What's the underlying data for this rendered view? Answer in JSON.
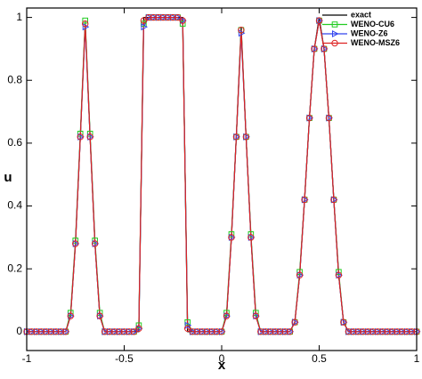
{
  "chart_data": {
    "type": "line",
    "x_label": "x",
    "y_label": "u",
    "x": [
      -1,
      -0.975,
      -0.95,
      -0.925,
      -0.9,
      -0.875,
      -0.85,
      -0.825,
      -0.8,
      -0.775,
      -0.75,
      -0.725,
      -0.7,
      -0.675,
      -0.65,
      -0.625,
      -0.6,
      -0.575,
      -0.55,
      -0.525,
      -0.5,
      -0.475,
      -0.45,
      -0.425,
      -0.4,
      -0.375,
      -0.35,
      -0.325,
      -0.3,
      -0.275,
      -0.25,
      -0.225,
      -0.2,
      -0.175,
      -0.15,
      -0.125,
      -0.1,
      -0.075,
      -0.05,
      -0.025,
      0,
      0.025,
      0.05,
      0.075,
      0.1,
      0.125,
      0.15,
      0.175,
      0.2,
      0.225,
      0.25,
      0.275,
      0.3,
      0.325,
      0.35,
      0.375,
      0.4,
      0.425,
      0.45,
      0.475,
      0.5,
      0.525,
      0.55,
      0.575,
      0.6,
      0.625,
      0.65,
      0.675,
      0.7,
      0.725,
      0.75,
      0.775,
      0.8,
      0.825,
      0.85,
      0.875,
      0.9,
      0.925,
      0.95,
      0.975,
      1
    ],
    "series": [
      {
        "name": "exact",
        "color": "#000000",
        "marker": "none",
        "values": [
          0,
          0,
          0,
          0,
          0,
          0,
          0,
          0,
          0,
          0.05,
          0.28,
          0.62,
          0.98,
          0.62,
          0.28,
          0.05,
          0,
          0,
          0,
          0,
          0,
          0,
          0,
          0,
          1,
          1,
          1,
          1,
          1,
          1,
          1,
          1,
          1,
          0,
          0,
          0,
          0,
          0,
          0,
          0,
          0,
          0.05,
          0.3,
          0.62,
          0.97,
          0.62,
          0.3,
          0.05,
          0,
          0,
          0,
          0,
          0,
          0,
          0,
          0.03,
          0.18,
          0.42,
          0.68,
          0.9,
          1,
          0.9,
          0.68,
          0.42,
          0.18,
          0.03,
          0,
          0,
          0,
          0,
          0,
          0,
          0,
          0,
          0,
          0,
          0,
          0,
          0,
          0,
          0
        ]
      },
      {
        "name": "WENO-CU6",
        "color": "#22cc22",
        "marker": "square",
        "values": [
          0,
          0,
          0,
          0,
          0,
          0,
          0,
          0,
          0,
          0.06,
          0.29,
          0.63,
          0.99,
          0.63,
          0.29,
          0.06,
          0,
          0,
          0,
          0,
          0,
          0,
          0,
          0.02,
          0.98,
          1,
          1,
          1,
          1,
          1,
          1,
          1,
          0.98,
          0.03,
          0,
          0,
          0,
          0,
          0,
          0,
          0,
          0.06,
          0.31,
          0.62,
          0.96,
          0.62,
          0.31,
          0.06,
          0,
          0,
          0,
          0,
          0,
          0,
          0,
          0.03,
          0.19,
          0.42,
          0.68,
          0.9,
          0.99,
          0.9,
          0.68,
          0.42,
          0.19,
          0.03,
          0,
          0,
          0,
          0,
          0,
          0,
          0,
          0,
          0,
          0,
          0,
          0,
          0,
          0,
          0
        ]
      },
      {
        "name": "WENO-Z6",
        "color": "#3344ee",
        "marker": "triangle",
        "values": [
          0,
          0,
          0,
          0,
          0,
          0,
          0,
          0,
          0,
          0.05,
          0.28,
          0.62,
          0.97,
          0.62,
          0.28,
          0.05,
          0,
          0,
          0,
          0,
          0,
          0,
          0,
          0.01,
          0.97,
          1,
          1,
          1,
          1,
          1,
          1,
          1,
          0.99,
          0.02,
          0,
          0,
          0,
          0,
          0,
          0,
          0,
          0.05,
          0.3,
          0.62,
          0.95,
          0.62,
          0.3,
          0.05,
          0,
          0,
          0,
          0,
          0,
          0,
          0,
          0.03,
          0.18,
          0.42,
          0.68,
          0.9,
          0.99,
          0.9,
          0.68,
          0.42,
          0.18,
          0.03,
          0,
          0,
          0,
          0,
          0,
          0,
          0,
          0,
          0,
          0,
          0,
          0,
          0,
          0,
          0
        ]
      },
      {
        "name": "WENO-MSZ6",
        "color": "#dd2222",
        "marker": "circle",
        "values": [
          0,
          0,
          0,
          0,
          0,
          0,
          0,
          0,
          0,
          0.05,
          0.28,
          0.62,
          0.98,
          0.62,
          0.28,
          0.05,
          0,
          0,
          0,
          0,
          0,
          0,
          0,
          0.01,
          0.99,
          1,
          1,
          1,
          1,
          1,
          1,
          1,
          0.99,
          0.01,
          0,
          0,
          0,
          0,
          0,
          0,
          0,
          0.05,
          0.3,
          0.62,
          0.96,
          0.62,
          0.3,
          0.05,
          0,
          0,
          0,
          0,
          0,
          0,
          0,
          0.03,
          0.18,
          0.42,
          0.68,
          0.9,
          0.99,
          0.9,
          0.68,
          0.42,
          0.18,
          0.03,
          0,
          0,
          0,
          0,
          0,
          0,
          0,
          0,
          0,
          0,
          0,
          0,
          0,
          0,
          0
        ]
      }
    ],
    "xlim": [
      -1,
      1
    ],
    "xticks": [
      -1,
      -0.5,
      0,
      0.5,
      1
    ],
    "ylim": [
      -0.06,
      1.03
    ],
    "yticks": [
      0,
      0.2,
      0.4,
      0.6,
      0.8,
      1
    ],
    "legend": "upper right"
  }
}
